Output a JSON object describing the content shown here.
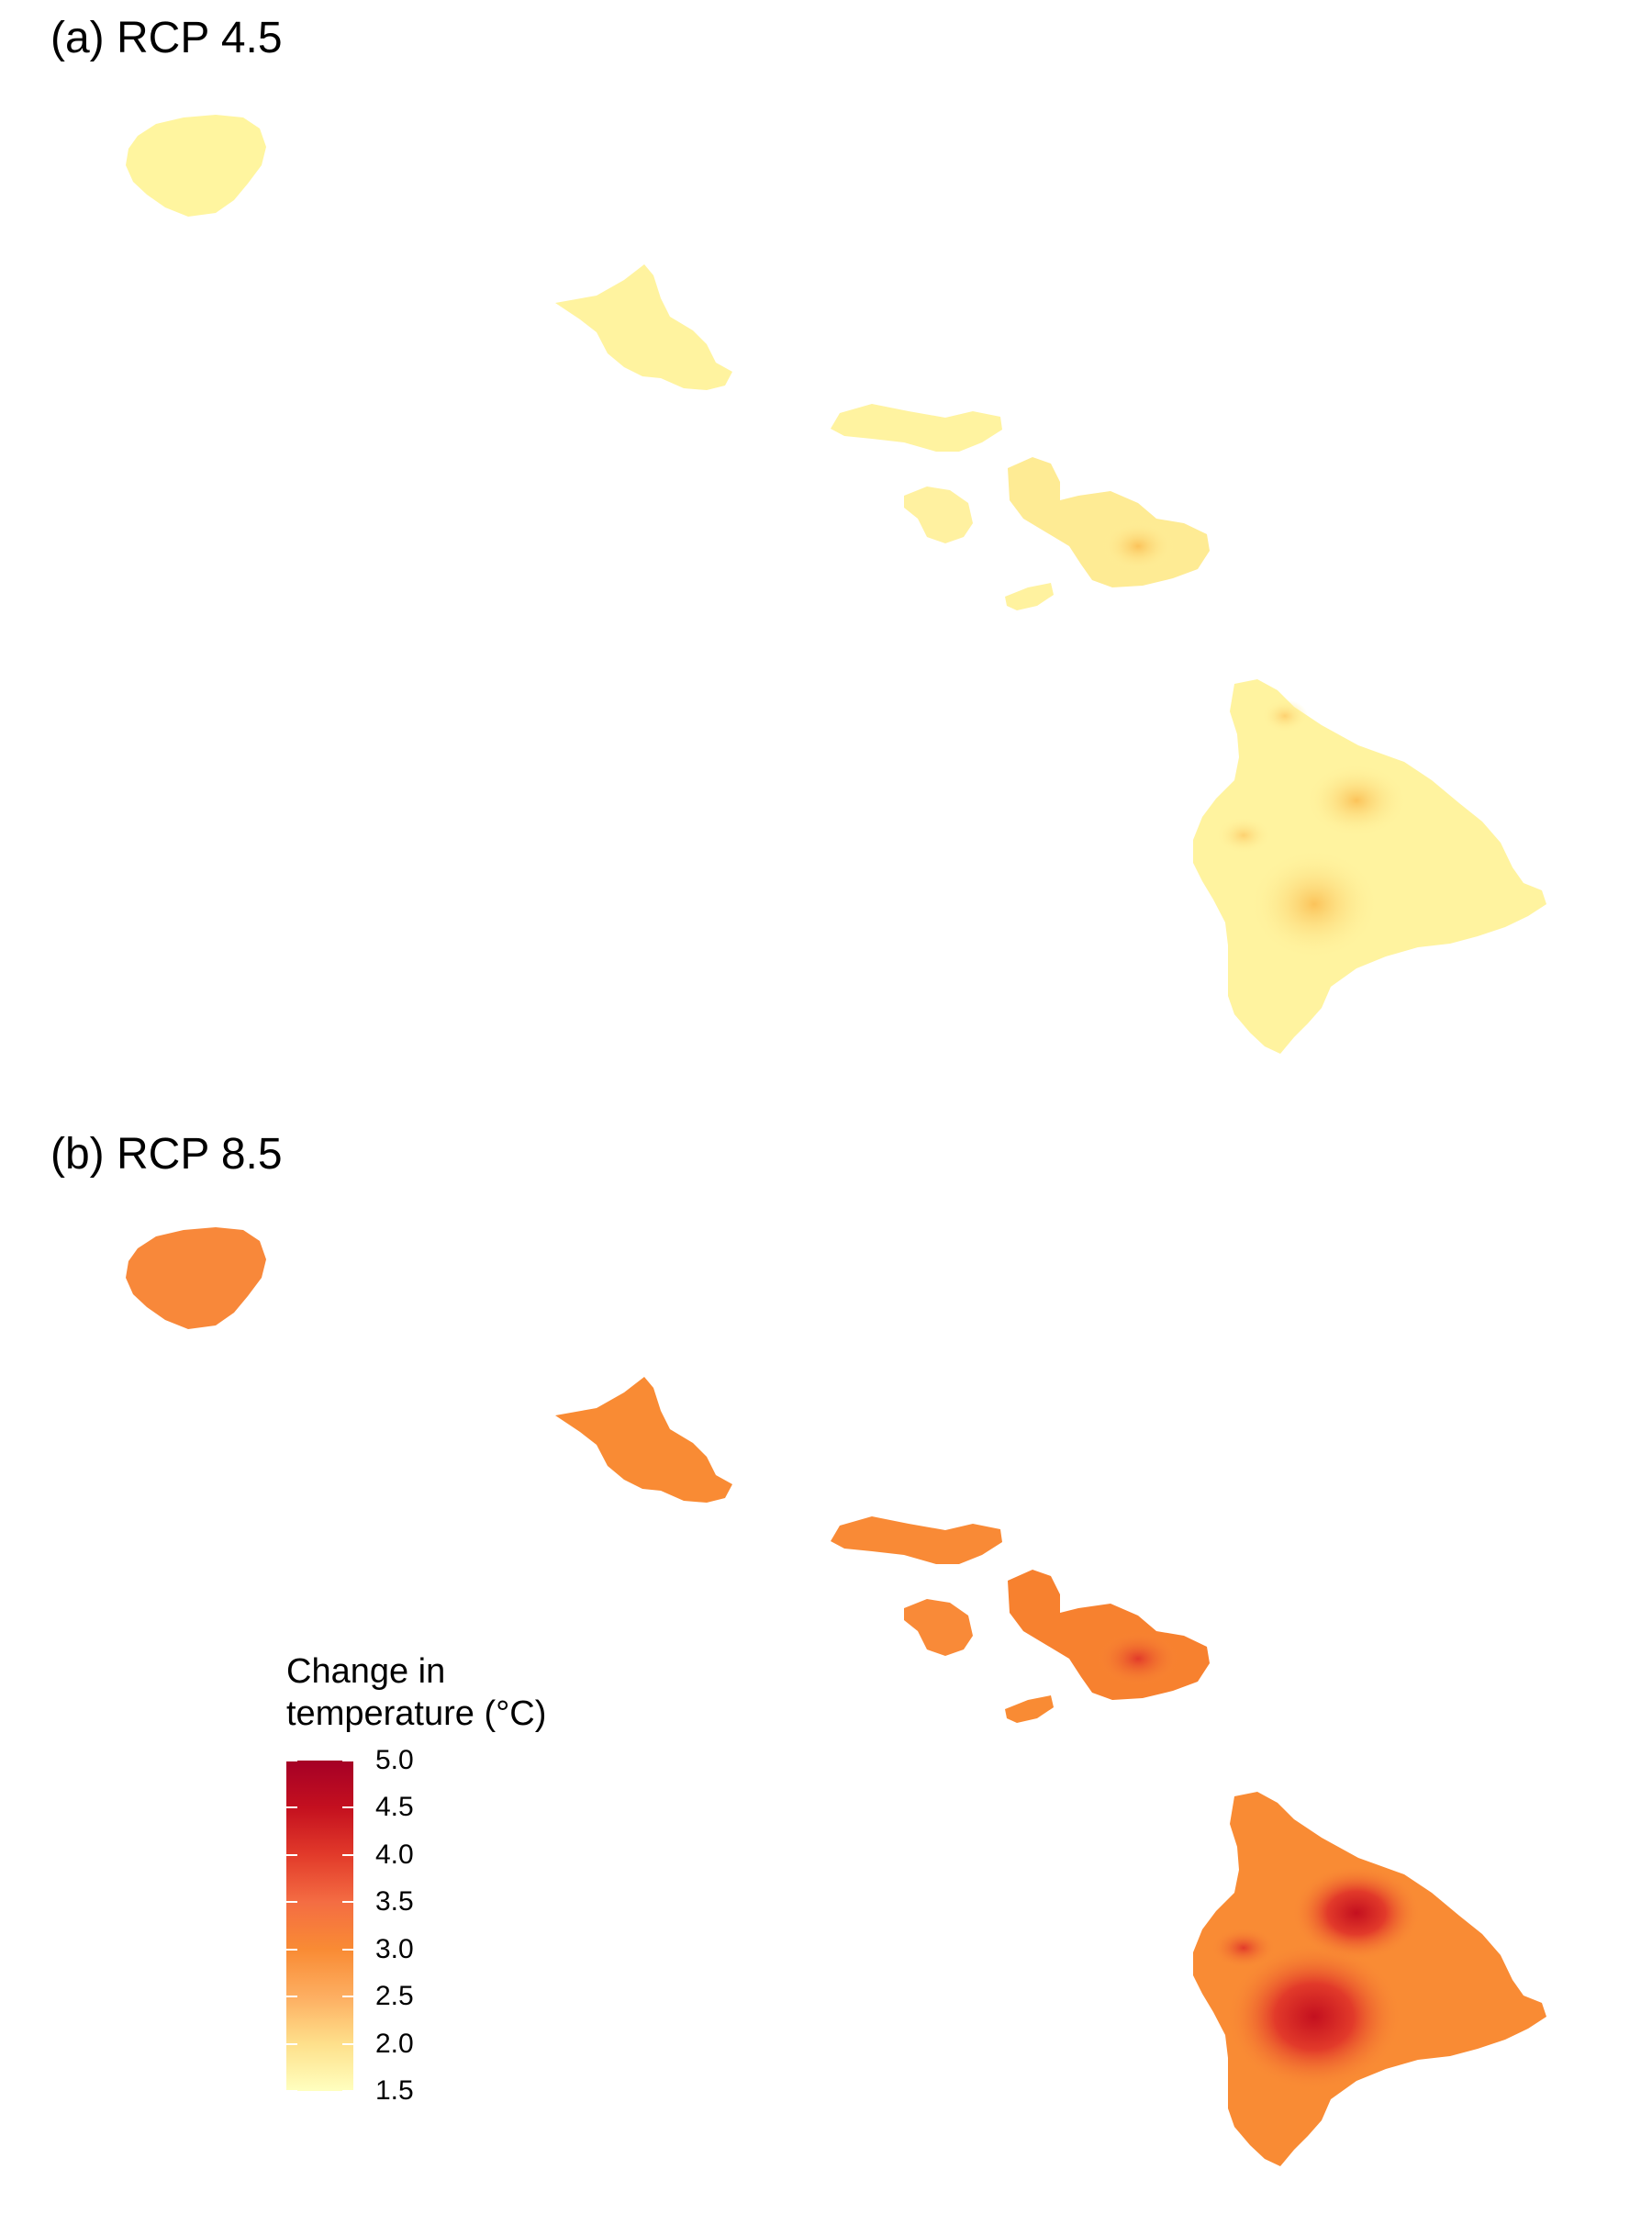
{
  "panels": [
    {
      "title": "(a) RCP 4.5",
      "scenario": "RCP 4.5",
      "base_color": "#fff39f"
    },
    {
      "title": "(b) RCP 8.5",
      "scenario": "RCP 8.5",
      "base_color": "#f98b34"
    }
  ],
  "legend": {
    "title_line1": "Change in",
    "title_line2": "temperature (°C)",
    "ticks": [
      "5.0",
      "4.5",
      "4.0",
      "3.5",
      "3.0",
      "2.5",
      "2.0",
      "1.5"
    ],
    "range": [
      1.5,
      5.0
    ],
    "colors": [
      "#ffffbf",
      "#fee08b",
      "#fdae61",
      "#f98b34",
      "#f46d43",
      "#e23a2a",
      "#c4101f",
      "#a50026"
    ]
  },
  "islands": [
    "Kauai",
    "Oahu",
    "Molokai",
    "Lanai",
    "Maui",
    "Kahoolawe",
    "Hawaii"
  ]
}
